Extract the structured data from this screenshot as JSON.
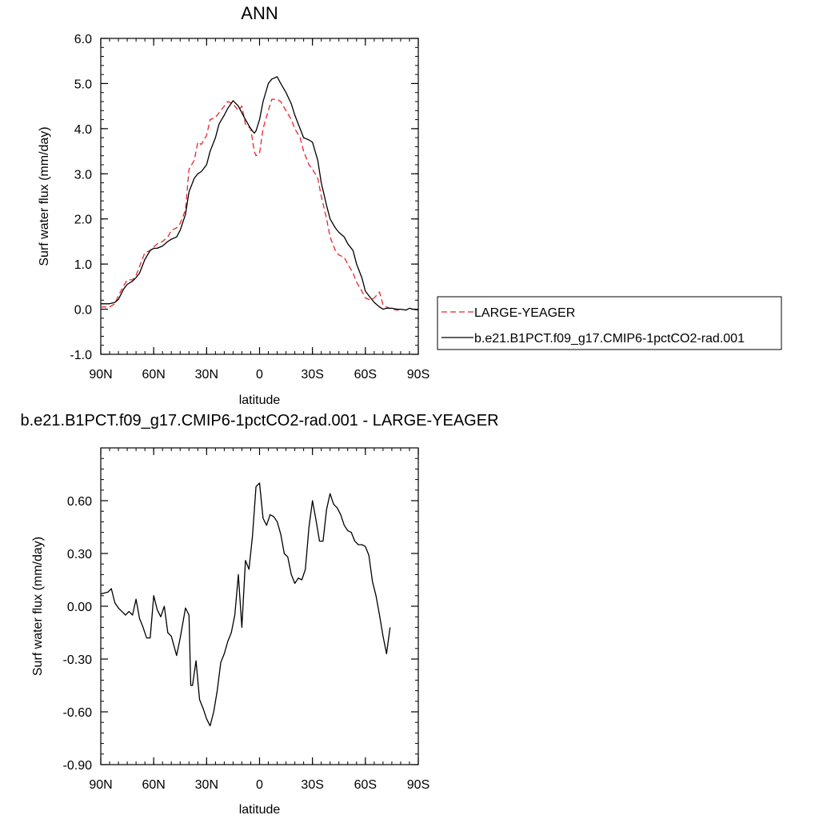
{
  "chart_data": [
    {
      "type": "line",
      "title": "ANN",
      "xlabel": "latitude",
      "ylabel": "Surf water flux (mm/day)",
      "xlim": [
        90,
        -90
      ],
      "ylim": [
        -1.0,
        6.0
      ],
      "x_tick_values": [
        90,
        60,
        30,
        0,
        -30,
        -60,
        -90
      ],
      "x_tick_labels": [
        "90N",
        "60N",
        "30N",
        "0",
        "30S",
        "60S",
        "90S"
      ],
      "y_tick_values": [
        -1,
        0,
        1,
        2,
        3,
        4,
        5,
        6
      ],
      "y_tick_labels": [
        "-1.0",
        "0.0",
        "1.0",
        "2.0",
        "3.0",
        "4.0",
        "5.0",
        "6.0"
      ],
      "legend_position": "right",
      "series": [
        {
          "name": "LARGE-YEAGER",
          "color": "#e8262c",
          "dash": "dashed",
          "x": [
            90,
            85,
            82,
            80,
            77,
            75,
            72,
            70,
            68,
            65,
            62,
            60,
            58,
            55,
            52,
            50,
            47,
            45,
            42,
            40,
            37,
            35,
            33,
            30,
            28,
            25,
            23,
            20,
            18,
            15,
            12,
            10,
            8,
            5,
            3,
            2,
            0,
            -2,
            -5,
            -7,
            -10,
            -12,
            -15,
            -18,
            -20,
            -23,
            -25,
            -28,
            -30,
            -33,
            -35,
            -38,
            -40,
            -43,
            -45,
            -48,
            -50,
            -53,
            -55,
            -58,
            -60,
            -63,
            -65,
            -68,
            -70,
            -72,
            -75,
            -78,
            -80
          ],
          "y": [
            0.05,
            0.05,
            0.12,
            0.3,
            0.52,
            0.65,
            0.65,
            0.75,
            0.95,
            1.25,
            1.3,
            1.38,
            1.45,
            1.5,
            1.6,
            1.75,
            1.8,
            1.9,
            2.2,
            3.1,
            3.3,
            3.7,
            3.65,
            3.85,
            4.2,
            4.25,
            4.35,
            4.5,
            4.6,
            4.55,
            4.4,
            4.5,
            4.1,
            4.0,
            3.5,
            3.4,
            3.45,
            4.0,
            4.4,
            4.65,
            4.65,
            4.6,
            4.4,
            4.2,
            4.0,
            3.8,
            3.5,
            3.2,
            3.1,
            2.9,
            2.5,
            2.0,
            1.6,
            1.3,
            1.2,
            1.15,
            1.0,
            0.8,
            0.6,
            0.4,
            0.25,
            0.2,
            0.25,
            0.38,
            0.1,
            0.05,
            0.0,
            -0.02,
            0.0
          ]
        },
        {
          "name": "b.e21.B1PCT.f09_g17.CMIP6-1pctCO2-rad.001",
          "color": "#000000",
          "dash": "solid",
          "x": [
            90,
            85,
            82,
            80,
            77,
            75,
            72,
            70,
            68,
            65,
            62,
            60,
            58,
            55,
            52,
            50,
            47,
            45,
            42,
            40,
            37,
            35,
            33,
            30,
            28,
            25,
            23,
            20,
            18,
            15,
            12,
            10,
            8,
            5,
            3,
            2,
            0,
            -2,
            -5,
            -7,
            -10,
            -12,
            -15,
            -18,
            -20,
            -23,
            -25,
            -28,
            -30,
            -33,
            -35,
            -38,
            -40,
            -43,
            -45,
            -48,
            -50,
            -53,
            -55,
            -58,
            -60,
            -63,
            -65,
            -68,
            -70,
            -72,
            -75,
            -78,
            -80,
            -83,
            -85,
            -87,
            -90
          ],
          "y": [
            0.12,
            0.12,
            0.15,
            0.22,
            0.45,
            0.55,
            0.62,
            0.7,
            0.8,
            1.1,
            1.3,
            1.35,
            1.35,
            1.4,
            1.5,
            1.55,
            1.6,
            1.75,
            2.1,
            2.6,
            2.9,
            3.0,
            3.05,
            3.2,
            3.5,
            3.8,
            4.1,
            4.3,
            4.45,
            4.62,
            4.5,
            4.35,
            4.2,
            4.0,
            3.9,
            3.95,
            4.2,
            4.6,
            5.0,
            5.1,
            5.15,
            5.0,
            4.8,
            4.55,
            4.3,
            4.0,
            3.8,
            3.75,
            3.7,
            3.3,
            2.8,
            2.3,
            2.0,
            1.8,
            1.7,
            1.6,
            1.45,
            1.3,
            1.0,
            0.7,
            0.4,
            0.25,
            0.15,
            0.05,
            0.0,
            0.02,
            0.02,
            0.0,
            0.0,
            -0.02,
            0.02,
            0.0,
            -0.02
          ]
        }
      ]
    },
    {
      "type": "line",
      "title": "b.e21.B1PCT.f09_g17.CMIP6-1pctCO2-rad.001 - LARGE-YEAGER",
      "xlabel": "latitude",
      "ylabel": "Surf water flux (mm/day)",
      "xlim": [
        90,
        -90
      ],
      "ylim": [
        -0.9,
        0.9
      ],
      "x_tick_values": [
        90,
        60,
        30,
        0,
        -30,
        -60,
        -90
      ],
      "x_tick_labels": [
        "90N",
        "60N",
        "30N",
        "0",
        "30S",
        "60S",
        "90S"
      ],
      "y_tick_values": [
        -0.9,
        -0.6,
        -0.3,
        0.0,
        0.3,
        0.6
      ],
      "y_tick_labels": [
        "-0.90",
        "-0.60",
        "-0.30",
        "0.00",
        "0.30",
        "0.60"
      ],
      "series": [
        {
          "color": "#000000",
          "dash": "solid",
          "x": [
            90,
            86,
            84,
            82,
            80,
            78,
            76,
            74,
            72,
            70,
            68,
            66,
            64,
            62,
            60,
            58,
            56,
            54,
            52,
            50,
            47,
            45,
            42,
            40,
            39,
            38,
            36,
            34,
            32,
            30,
            28,
            26,
            24,
            22,
            20,
            18,
            16,
            14,
            12,
            10,
            8,
            6,
            4,
            2,
            0,
            -2,
            -4,
            -6,
            -8,
            -10,
            -12,
            -14,
            -16,
            -18,
            -20,
            -22,
            -24,
            -26,
            -28,
            -30,
            -32,
            -34,
            -36,
            -38,
            -40,
            -42,
            -44,
            -46,
            -48,
            -50,
            -52,
            -54,
            -56,
            -58,
            -60,
            -62,
            -64,
            -66,
            -68,
            -70,
            -72,
            -74,
            -76,
            -78,
            -80
          ],
          "y": [
            0.07,
            0.08,
            0.1,
            0.02,
            -0.01,
            -0.03,
            -0.05,
            -0.03,
            -0.05,
            0.04,
            -0.07,
            -0.12,
            -0.18,
            -0.18,
            0.06,
            -0.02,
            -0.06,
            0.0,
            -0.15,
            -0.17,
            -0.28,
            -0.18,
            -0.01,
            -0.05,
            -0.45,
            -0.45,
            -0.31,
            -0.53,
            -0.58,
            -0.64,
            -0.68,
            -0.6,
            -0.48,
            -0.32,
            -0.27,
            -0.2,
            -0.15,
            -0.05,
            0.18,
            -0.12,
            0.26,
            0.21,
            0.4,
            0.68,
            0.7,
            0.5,
            0.46,
            0.52,
            0.51,
            0.48,
            0.41,
            0.3,
            0.28,
            0.18,
            0.13,
            0.16,
            0.15,
            0.21,
            0.45,
            0.6,
            0.49,
            0.37,
            0.37,
            0.55,
            0.64,
            0.58,
            0.56,
            0.52,
            0.46,
            0.43,
            0.42,
            0.37,
            0.35,
            0.35,
            0.34,
            0.29,
            0.14,
            0.06,
            -0.05,
            -0.17,
            -0.27,
            -0.12,
            null,
            null,
            null
          ]
        }
      ]
    }
  ]
}
